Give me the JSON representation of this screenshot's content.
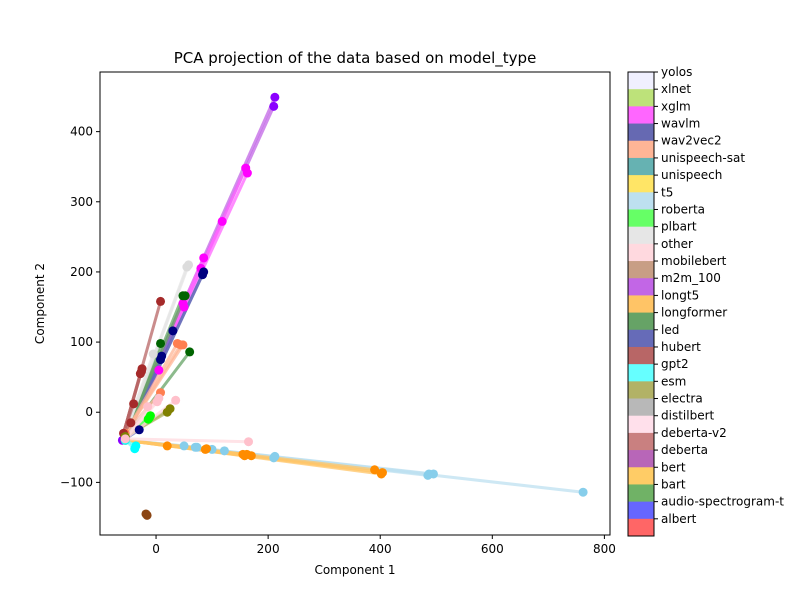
{
  "chart_data": {
    "type": "scatter",
    "title": "PCA projection of the data based on model_type",
    "xlabel": "Component 1",
    "ylabel": "Component 2",
    "xlim": [
      -100,
      810
    ],
    "ylim": [
      -175,
      485
    ],
    "xticks": [
      0,
      200,
      400,
      600,
      800
    ],
    "yticks": [
      -100,
      0,
      100,
      200,
      300,
      400
    ],
    "grid": false,
    "legend_placement": "right-colorbar",
    "legend": [
      {
        "name": "yolos",
        "color": "#f0f0ff"
      },
      {
        "name": "xlnet",
        "color": "#bde27a"
      },
      {
        "name": "xglm",
        "color": "#ff66ff"
      },
      {
        "name": "wavlm",
        "color": "#6669b2"
      },
      {
        "name": "wav2vec2",
        "color": "#ffb596"
      },
      {
        "name": "unispeech-sat",
        "color": "#66b2b2"
      },
      {
        "name": "unispeech",
        "color": "#ffe566"
      },
      {
        "name": "t5",
        "color": "#bde0f0"
      },
      {
        "name": "roberta",
        "color": "#66ff66"
      },
      {
        "name": "plbart",
        "color": "#e6e6e6"
      },
      {
        "name": "other",
        "color": "#ffd9df"
      },
      {
        "name": "mobilebert",
        "color": "#c89e85"
      },
      {
        "name": "m2m_100",
        "color": "#c266e6"
      },
      {
        "name": "longt5",
        "color": "#ffc466"
      },
      {
        "name": "longformer",
        "color": "#66a366"
      },
      {
        "name": "led",
        "color": "#666bb8"
      },
      {
        "name": "hubert",
        "color": "#b86666"
      },
      {
        "name": "gpt2",
        "color": "#66ffff"
      },
      {
        "name": "esm",
        "color": "#b2b266"
      },
      {
        "name": "electra",
        "color": "#b8b8b8"
      },
      {
        "name": "distilbert",
        "color": "#ffe0eb"
      },
      {
        "name": "deberta-v2",
        "color": "#c98080"
      },
      {
        "name": "deberta",
        "color": "#b866b8"
      },
      {
        "name": "bert",
        "color": "#ffcc66"
      },
      {
        "name": "bart",
        "color": "#70b266"
      },
      {
        "name": "audio-spectrogram-t",
        "color": "#6666ff"
      },
      {
        "name": "albert",
        "color": "#ff6666"
      }
    ],
    "series": [
      {
        "color": "#8b00ff",
        "line": "#c266e6",
        "x": [
          -60,
          212,
          210
        ],
        "y": [
          -40,
          449,
          436
        ]
      },
      {
        "color": "#ff00ff",
        "line": "#ff66ff",
        "x": [
          -55,
          160,
          163,
          118,
          85,
          80,
          48,
          50,
          5
        ],
        "y": [
          -35,
          348,
          341,
          272,
          220,
          205,
          155,
          150,
          60
        ]
      },
      {
        "color": "#000080",
        "line": "#666bb8",
        "x": [
          -55,
          85,
          83,
          30,
          10,
          8,
          -30
        ],
        "y": [
          -38,
          200,
          196,
          116,
          80,
          75,
          -25
        ]
      },
      {
        "color": "#006400",
        "line": "#66a366",
        "x": [
          -55,
          48,
          60,
          8,
          52
        ],
        "y": [
          -35,
          166,
          86,
          98,
          166
        ]
      },
      {
        "color": "#dcdcdc",
        "line": "#e6e6e6",
        "x": [
          -55,
          58,
          55,
          -5
        ],
        "y": [
          -30,
          210,
          207,
          83
        ]
      },
      {
        "color": "#ff7f50",
        "line": "#ffb596",
        "x": [
          -55,
          38,
          48,
          44,
          8
        ],
        "y": [
          -30,
          98,
          96,
          96,
          28
        ]
      },
      {
        "color": "#87ceeb",
        "line": "#bde0f0",
        "x": [
          -55,
          762,
          495,
          487,
          485,
          212,
          210,
          122,
          100,
          73,
          70,
          50
        ],
        "y": [
          -40,
          -114,
          -88,
          -88,
          -90,
          -63,
          -65,
          -55,
          -53,
          -50,
          -50,
          -48
        ]
      },
      {
        "color": "#ff8c00",
        "line": "#ffc466",
        "x": [
          -55,
          404,
          402,
          390,
          170,
          162,
          158,
          155,
          90,
          88,
          20
        ],
        "y": [
          -40,
          -86,
          -88,
          -82,
          -62,
          -60,
          -62,
          -60,
          -52,
          -53,
          -48
        ]
      },
      {
        "color": "#a52a2a",
        "line": "#b86666",
        "x": [
          -58,
          8,
          -25,
          -26,
          -28,
          -40,
          -45
        ],
        "y": [
          -30,
          158,
          62,
          58,
          55,
          12,
          -15
        ]
      },
      {
        "color": "#00ff00",
        "line": "#66ff66",
        "x": [
          -55,
          -10,
          -12,
          -14
        ],
        "y": [
          -35,
          -5,
          -8,
          -10
        ]
      },
      {
        "color": "#00ffff",
        "line": "#66ffff",
        "x": [
          -55,
          -38,
          -36
        ],
        "y": [
          -40,
          -52,
          -48
        ]
      },
      {
        "color": "#808000",
        "line": "#b2b266",
        "x": [
          -55,
          25,
          20
        ],
        "y": [
          -35,
          5,
          0
        ]
      },
      {
        "color": "#ffc0cb",
        "line": "#ffd9df",
        "x": [
          -55,
          165,
          35,
          5,
          2,
          -15
        ],
        "y": [
          -38,
          -42,
          17,
          20,
          15,
          8
        ]
      },
      {
        "color": "#8b4513",
        "line": "#c89e85",
        "x": [
          -18,
          -16
        ],
        "y": [
          -145,
          -147
        ]
      }
    ]
  }
}
